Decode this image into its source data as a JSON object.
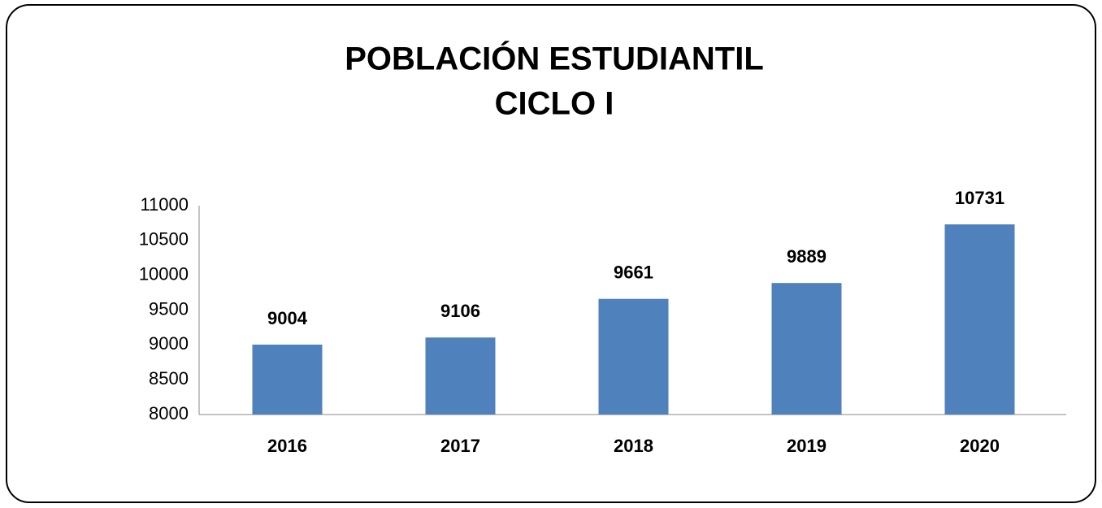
{
  "chart_data": {
    "type": "bar",
    "title": "POBLACIÓN ESTUDIANTIL",
    "subtitle": "CICLO I",
    "categories": [
      "2016",
      "2017",
      "2018",
      "2019",
      "2020"
    ],
    "values": [
      9004,
      9106,
      9661,
      9889,
      10731
    ],
    "color": "#4f81bd",
    "ylim": [
      8000,
      11000
    ],
    "yticks": [
      8000,
      8500,
      9000,
      9500,
      10000,
      10500,
      11000
    ],
    "grid": false
  }
}
